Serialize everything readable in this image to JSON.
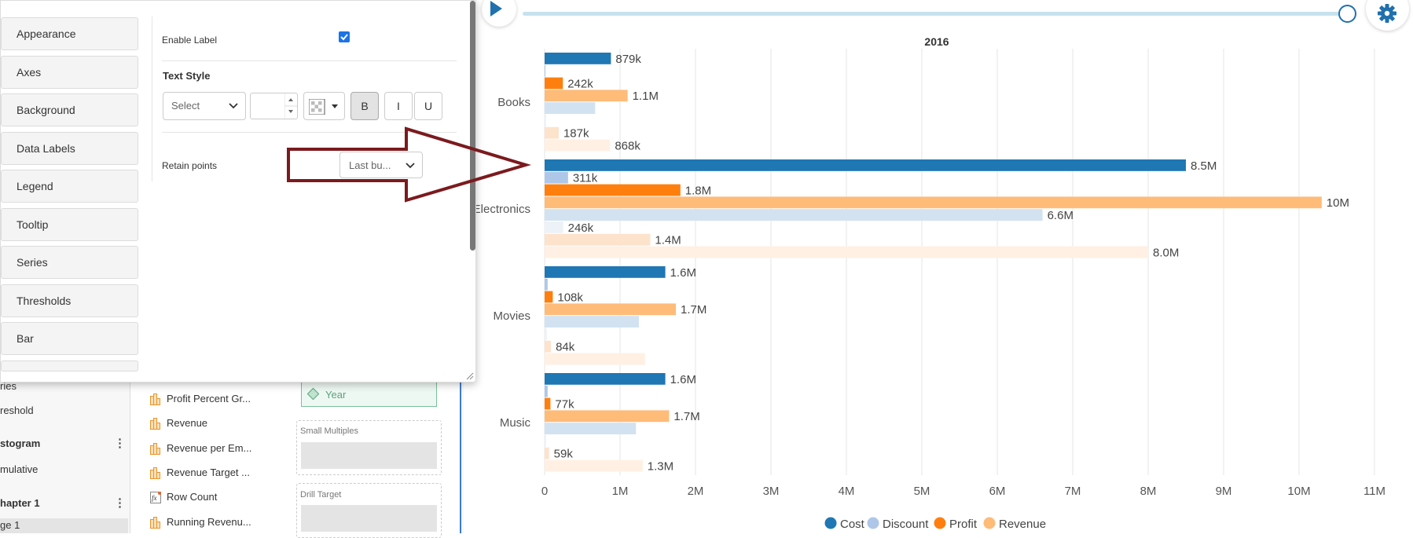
{
  "tree": {
    "items": [
      {
        "label": "ries",
        "top": 484
      },
      {
        "label": "reshold",
        "top": 515
      }
    ],
    "groups": [
      {
        "label": "stogram",
        "top": 557,
        "child": "mulative",
        "child_top": 590
      },
      {
        "label": "hapter 1",
        "top": 633,
        "child": "ge 1",
        "child_top": 661
      }
    ]
  },
  "fields": [
    {
      "label": "Profit Percent Gr...",
      "icon": "measure-icon"
    },
    {
      "label": "Revenue",
      "icon": "measure-icon"
    },
    {
      "label": "Revenue per Em...",
      "icon": "measure-icon"
    },
    {
      "label": "Revenue Target ...",
      "icon": "measure-icon"
    },
    {
      "label": "Row Count",
      "icon": "function-icon"
    },
    {
      "label": "Running Revenu...",
      "icon": "measure-icon"
    }
  ],
  "zones": {
    "year_chip": "Year",
    "small_multiples": "Small Multiples",
    "drill_target": "Drill Target"
  },
  "panel": {
    "nav_items": [
      "Appearance",
      "Axes",
      "Background",
      "Data Labels",
      "Legend",
      "Tooltip",
      "Series",
      "Thresholds",
      "Bar"
    ],
    "enable_label": "Enable Label",
    "enable_label_checked": true,
    "text_style_heading": "Text Style",
    "font_select": "Select",
    "font_size_value": "",
    "bold": "B",
    "italic": "I",
    "underline": "U",
    "retain_points_label": "Retain points",
    "retain_points_value": "Last bu..."
  },
  "timeline": {
    "year_label": "2016",
    "position": 1.0
  },
  "colors": {
    "cost": "#1f77b4",
    "discount": "#aec7e8",
    "profit": "#ff7f0e",
    "revenue": "#ffbb78",
    "annotation_arrow": "#7b1a1e"
  },
  "chart_data": {
    "type": "bar",
    "orientation": "horizontal",
    "title": "2016",
    "categories": [
      "Books",
      "Electronics",
      "Movies",
      "Music"
    ],
    "series": [
      {
        "name": "Cost",
        "values": [
          879000,
          8500000,
          1600000,
          1600000
        ],
        "labels": [
          "879k",
          "8.5M",
          "1.6M",
          "1.6M"
        ]
      },
      {
        "name": "Discount",
        "values": [
          10000,
          311000,
          40000,
          40000
        ],
        "labels": [
          "",
          "311k",
          "",
          ""
        ]
      },
      {
        "name": "Profit",
        "values": [
          242000,
          1800000,
          108000,
          77000
        ],
        "labels": [
          "242k",
          "1.8M",
          "108k",
          "77k"
        ]
      },
      {
        "name": "Revenue",
        "values": [
          1100000,
          10300000,
          1740000,
          1650000
        ],
        "labels": [
          "1.1M",
          "10M",
          "1.7M",
          "1.7M"
        ]
      },
      {
        "name": "",
        "values": [
          670000,
          6600000,
          1250000,
          1210000
        ],
        "labels": [
          "",
          "6.6M",
          "",
          ""
        ]
      },
      {
        "name": "",
        "values": [
          20000,
          246000,
          30000,
          20000
        ],
        "labels": [
          "",
          "246k",
          "",
          ""
        ]
      },
      {
        "name": "",
        "values": [
          187000,
          1400000,
          84000,
          59000
        ],
        "labels": [
          "187k",
          "1.4M",
          "84k",
          "59k"
        ]
      },
      {
        "name": "",
        "values": [
          868000,
          8000000,
          1330000,
          1300000
        ],
        "labels": [
          "868k",
          "8.0M",
          "",
          "1.3M"
        ]
      }
    ],
    "series_colors": [
      "#1f77b4",
      "#aec7e8",
      "#ff7f0e",
      "#ffbb78",
      "#d2e2f1",
      "#edf2f8",
      "#fde2cc",
      "#fff0e3"
    ],
    "xlim": [
      0,
      11000000
    ],
    "xticks": [
      "0",
      "1M",
      "2M",
      "3M",
      "4M",
      "5M",
      "6M",
      "7M",
      "8M",
      "9M",
      "10M",
      "11M"
    ],
    "grid": true,
    "legend": [
      "Cost",
      "Discount",
      "Profit",
      "Revenue"
    ],
    "legend_position": "bottom"
  }
}
